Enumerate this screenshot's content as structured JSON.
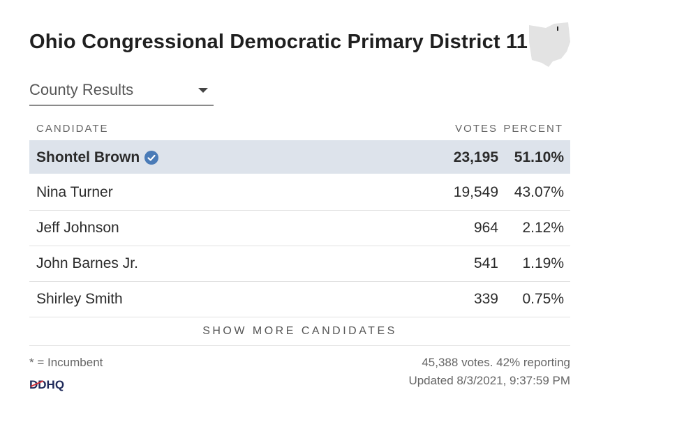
{
  "title": "Ohio Congressional Democratic Primary District 11",
  "state_map_icon": "ohio-state-map",
  "dropdown": {
    "selected": "County Results"
  },
  "table": {
    "headers": {
      "candidate": "CANDIDATE",
      "votes": "VOTES",
      "percent": "PERCENT"
    },
    "rows": [
      {
        "name": "Shontel Brown",
        "votes": "23,195",
        "percent": "51.10%",
        "winner": true
      },
      {
        "name": "Nina Turner",
        "votes": "19,549",
        "percent": "43.07%"
      },
      {
        "name": "Jeff Johnson",
        "votes": "964",
        "percent": "2.12%"
      },
      {
        "name": "John Barnes Jr.",
        "votes": "541",
        "percent": "1.19%"
      },
      {
        "name": "Shirley Smith",
        "votes": "339",
        "percent": "0.75%"
      }
    ],
    "show_more": "SHOW MORE CANDIDATES"
  },
  "footer": {
    "incumbent_note": "* = Incumbent",
    "logo_text": "DDHQ",
    "votes_reporting": "45,388 votes. 42% reporting",
    "updated": "Updated 8/3/2021, 9:37:59 PM"
  },
  "colors": {
    "winner_row": "#dde3eb",
    "check": "#4a7bb7",
    "map": "#e3e3e3"
  }
}
